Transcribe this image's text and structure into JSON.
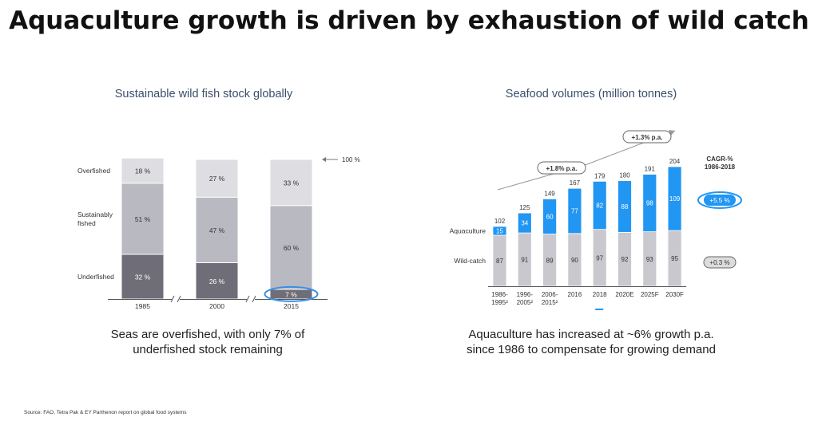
{
  "slide": {
    "title": "Aquaculture growth is driven by exhaustion of wild catch",
    "source": "Source: FAO, Tetra Pak & EY Parthenon report on global food systems"
  },
  "chart_data": [
    {
      "type": "bar",
      "stacked": true,
      "title": "Sustainable wild fish stock globally",
      "categories": [
        "1985",
        "2000",
        "2015"
      ],
      "series": [
        {
          "name": "Underfished",
          "values": [
            32,
            26,
            7
          ],
          "labels": [
            "32 %",
            "26 %",
            "7 %"
          ],
          "color": "#6f6e78"
        },
        {
          "name": "Sustainably fished",
          "values": [
            51,
            47,
            60
          ],
          "labels": [
            "51 %",
            "47 %",
            "60 %"
          ],
          "color": "#b9b9c2"
        },
        {
          "name": "Overfished",
          "values": [
            18,
            27,
            33
          ],
          "labels": [
            "18 %",
            "27 %",
            "33 %"
          ],
          "color": "#dddde2"
        }
      ],
      "row_labels": [
        {
          "series": "Overfished",
          "lines": [
            "Overfished"
          ]
        },
        {
          "series": "Sustainably fished",
          "lines": [
            "Sustainably",
            "fished"
          ]
        },
        {
          "series": "Underfished",
          "lines": [
            "Underfished"
          ]
        }
      ],
      "total_label": "100 %",
      "highlight": {
        "category": "2015",
        "series": "Underfished",
        "color": "#3a8ee6"
      },
      "axis_break": true,
      "caption_lines": [
        "Seas are overfished, with only 7% of",
        "underfished stock remaining"
      ]
    },
    {
      "type": "bar",
      "stacked": true,
      "title": "Seafood volumes (million tonnes)",
      "categories": [
        {
          "lines": [
            "1986-",
            "1995²"
          ]
        },
        {
          "lines": [
            "1996-",
            "2005²"
          ]
        },
        {
          "lines": [
            "2006-",
            "2015²"
          ]
        },
        {
          "lines": [
            "2016"
          ]
        },
        {
          "lines": [
            "2018"
          ]
        },
        {
          "lines": [
            "2020E"
          ]
        },
        {
          "lines": [
            "2025F"
          ]
        },
        {
          "lines": [
            "2030F"
          ]
        }
      ],
      "series": [
        {
          "name": "Wild-catch",
          "values": [
            87,
            91,
            89,
            90,
            97,
            92,
            93,
            95
          ],
          "color": "#c8c8ce"
        },
        {
          "name": "Aquaculture",
          "values": [
            15,
            34,
            60,
            77,
            82,
            88,
            98,
            109
          ],
          "color": "#2196f3"
        }
      ],
      "totals": [
        102,
        125,
        149,
        167,
        179,
        180,
        191,
        204
      ],
      "ylim": [
        0,
        204
      ],
      "trend_annotations": [
        "+1.8% p.a.",
        "+1.3% p.a."
      ],
      "cagr": {
        "header_lines": [
          "CAGR-%",
          "1986-2018"
        ],
        "aquaculture": "+5.5 %",
        "wild_catch": "+0.3 %"
      },
      "caption_lines": [
        "Aquaculture has increased at ~6% growth p.a.",
        "since 1986 to compensate for growing demand"
      ]
    }
  ]
}
